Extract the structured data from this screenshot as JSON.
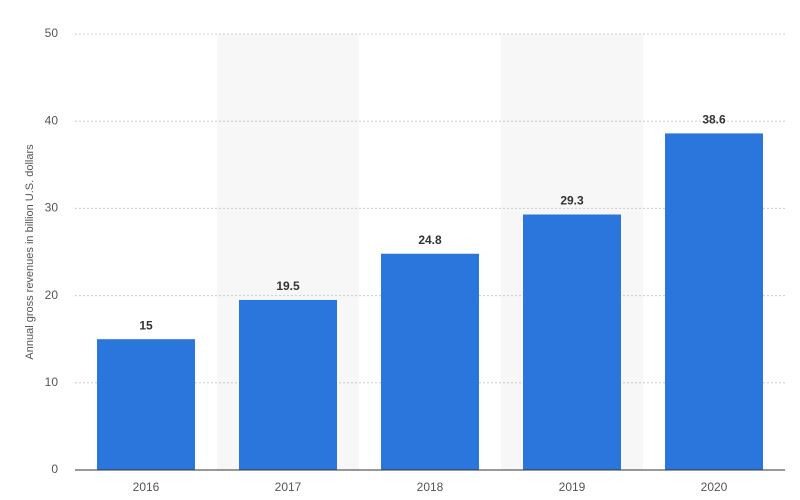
{
  "chart_data": {
    "type": "bar",
    "y_label": "Annual gross revenues in billion U.S. dollars",
    "categories": [
      "2016",
      "2017",
      "2018",
      "2019",
      "2020"
    ],
    "values": [
      15,
      19.5,
      24.8,
      29.3,
      38.6
    ],
    "color": "#2a76dd",
    "ylim": [
      0,
      50
    ],
    "yticks": [
      0,
      10,
      20,
      30,
      40,
      50
    ],
    "grid": true
  }
}
